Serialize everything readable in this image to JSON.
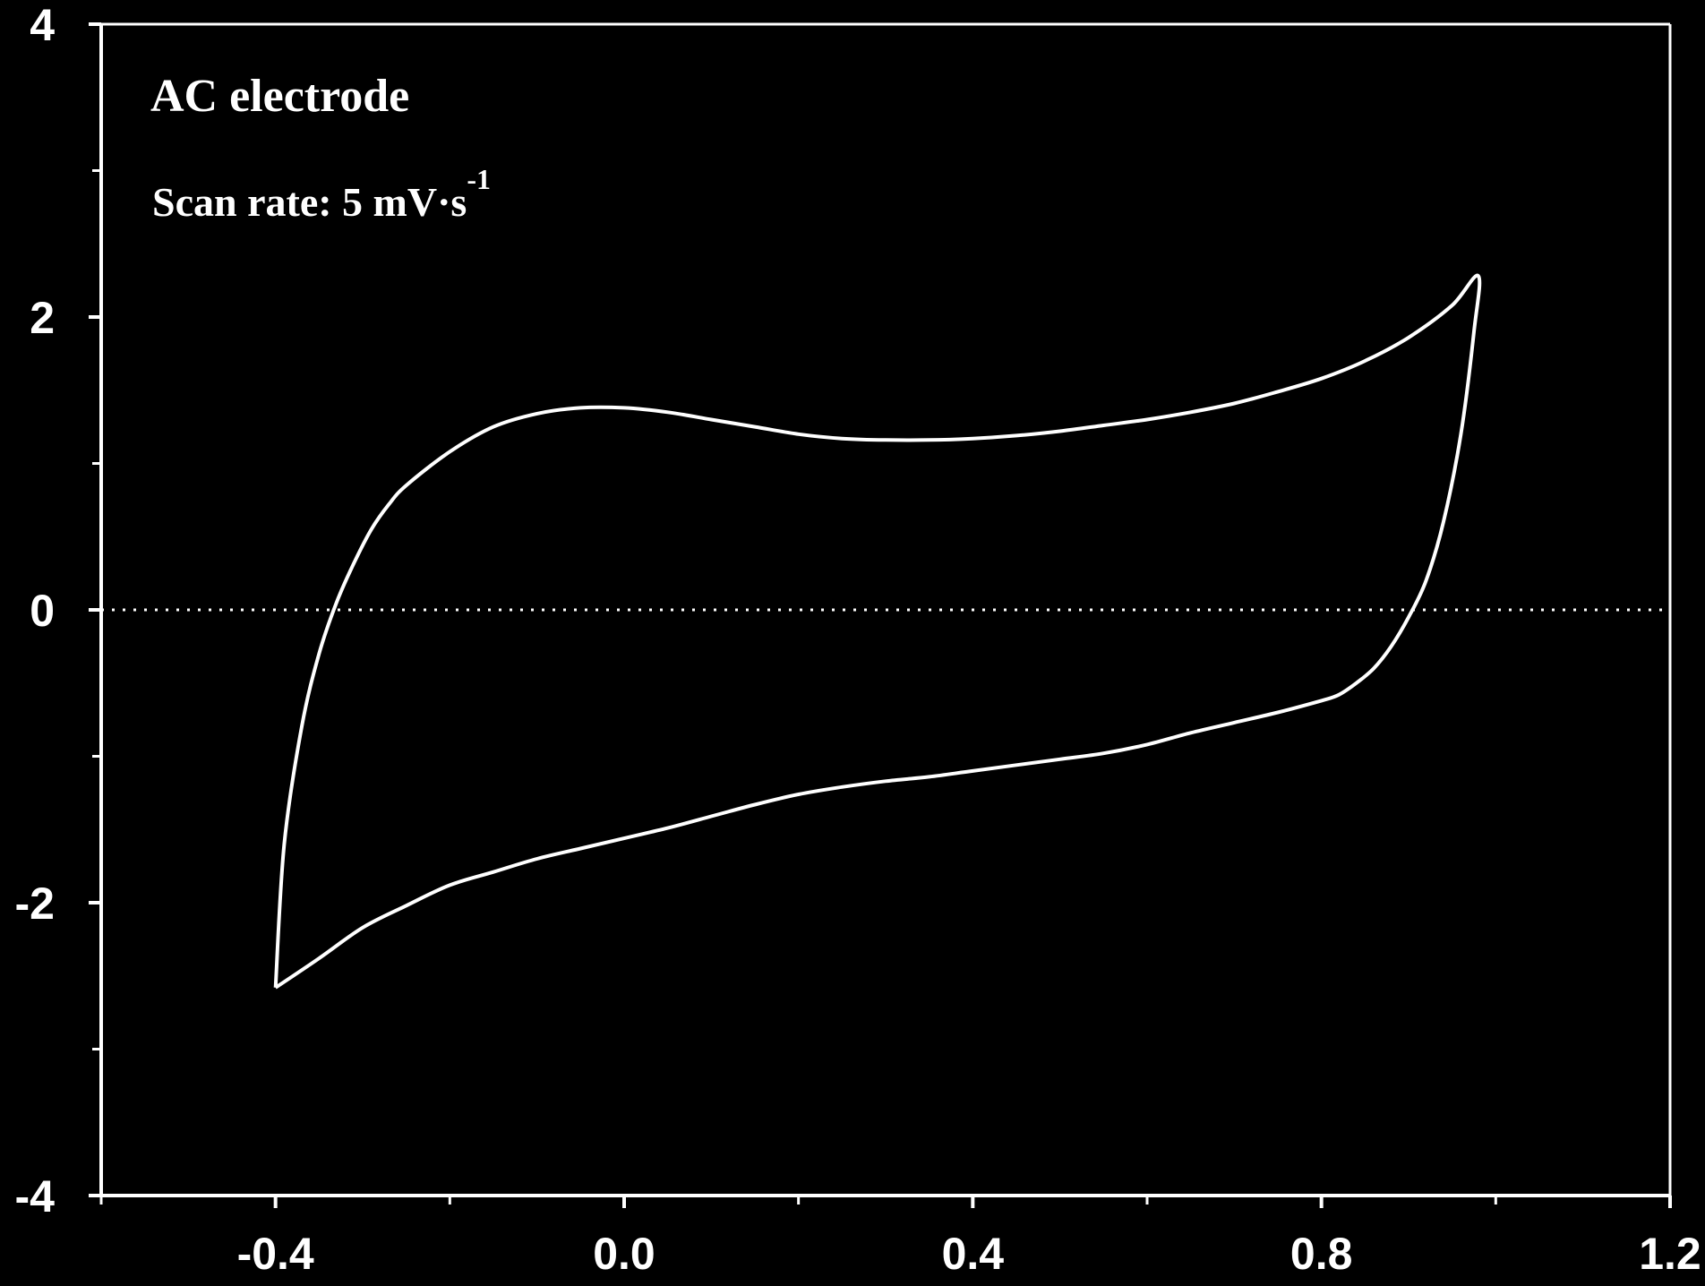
{
  "chart_data": {
    "type": "line",
    "title": "",
    "xlabel": "",
    "ylabel": "",
    "xlim": [
      -0.6,
      1.2
    ],
    "ylim": [
      -4,
      4
    ],
    "x_ticks": [
      -0.4,
      0.0,
      0.4,
      0.8,
      1.2
    ],
    "x_tick_labels": [
      "-0.4",
      "0.0",
      "0.4",
      "0.8",
      "1.2"
    ],
    "x_minor_ticks": [
      -0.6,
      -0.2,
      0.2,
      0.6,
      1.0
    ],
    "y_ticks": [
      -4,
      -2,
      0,
      2,
      4
    ],
    "y_tick_labels": [
      "-4",
      "-2",
      "0",
      "2",
      "4"
    ],
    "y_minor_ticks": [
      -3,
      -1,
      1,
      3
    ],
    "grid": false,
    "legend": "none",
    "annotations": {
      "electrode": "AC electrode",
      "scan_rate_text": "Scan rate: 5 mV·s",
      "scan_rate_superscript": "-1"
    },
    "reference_line": {
      "y": 0,
      "style": "dotted"
    },
    "colors": {
      "background": "#000000",
      "foreground": "#ffffff"
    },
    "series": [
      {
        "x": [
          -0.4,
          -0.39,
          -0.37,
          -0.35,
          -0.33,
          -0.31,
          -0.29,
          -0.27,
          -0.25,
          -0.2,
          -0.15,
          -0.1,
          -0.05,
          0.0,
          0.05,
          0.1,
          0.15,
          0.2,
          0.25,
          0.3,
          0.35,
          0.4,
          0.45,
          0.5,
          0.55,
          0.6,
          0.65,
          0.7,
          0.75,
          0.8,
          0.85,
          0.9,
          0.95,
          0.98,
          0.975,
          0.96,
          0.94,
          0.92,
          0.9,
          0.88,
          0.86,
          0.84,
          0.82,
          0.8,
          0.75,
          0.7,
          0.65,
          0.6,
          0.55,
          0.5,
          0.45,
          0.4,
          0.35,
          0.3,
          0.25,
          0.2,
          0.15,
          0.1,
          0.05,
          0.0,
          -0.05,
          -0.1,
          -0.15,
          -0.2,
          -0.25,
          -0.3,
          -0.35,
          -0.4
        ],
        "y": [
          -2.58,
          -1.6,
          -0.8,
          -0.3,
          0.05,
          0.32,
          0.55,
          0.72,
          0.85,
          1.08,
          1.25,
          1.34,
          1.38,
          1.38,
          1.35,
          1.3,
          1.25,
          1.2,
          1.17,
          1.16,
          1.16,
          1.17,
          1.19,
          1.22,
          1.26,
          1.3,
          1.35,
          1.41,
          1.49,
          1.58,
          1.7,
          1.86,
          2.08,
          2.28,
          1.9,
          1.2,
          0.6,
          0.2,
          -0.05,
          -0.25,
          -0.4,
          -0.5,
          -0.58,
          -0.62,
          -0.7,
          -0.77,
          -0.84,
          -0.92,
          -0.98,
          -1.02,
          -1.06,
          -1.1,
          -1.14,
          -1.17,
          -1.21,
          -1.26,
          -1.33,
          -1.41,
          -1.49,
          -1.56,
          -1.63,
          -1.7,
          -1.79,
          -1.88,
          -2.02,
          -2.17,
          -2.38,
          -2.58
        ]
      }
    ]
  }
}
